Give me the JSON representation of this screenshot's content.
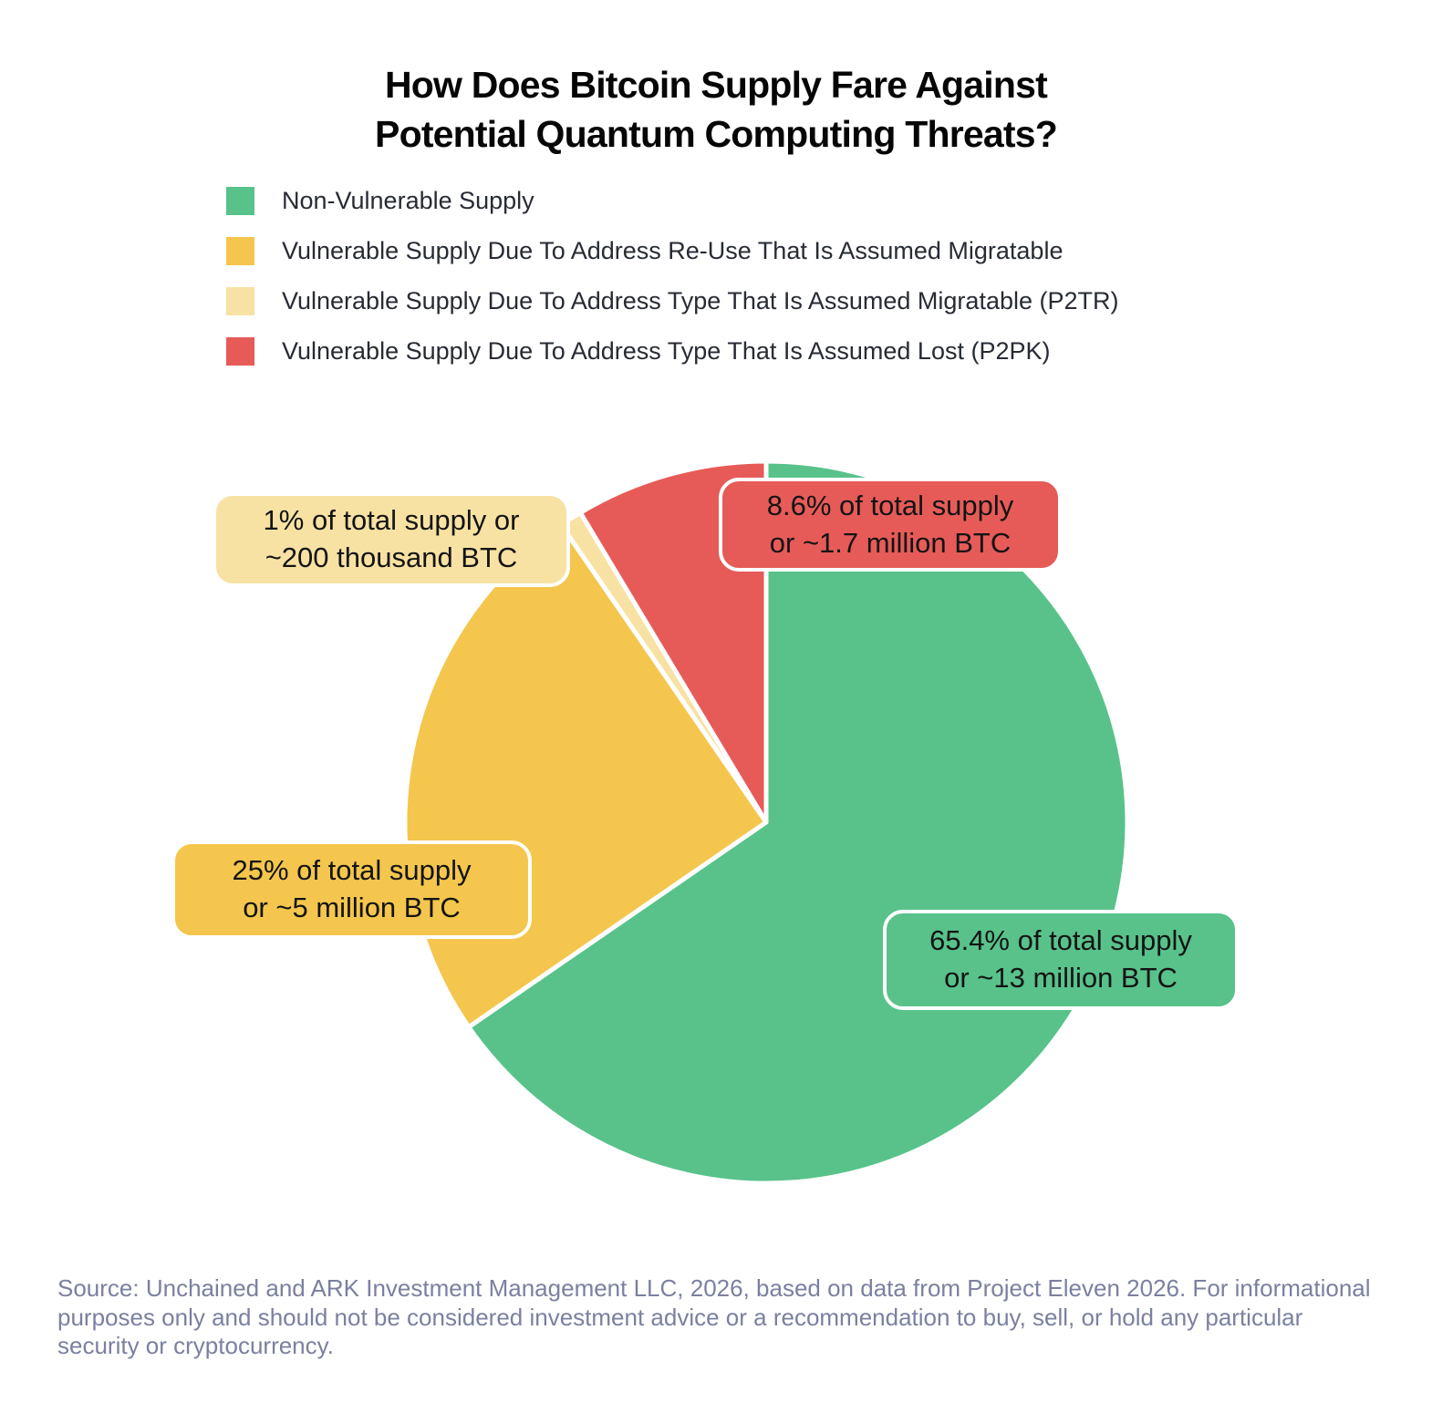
{
  "title": {
    "line1": "How Does Bitcoin Supply Fare Against",
    "line2": "Potential Quantum Computing Threats?"
  },
  "chart_data": {
    "type": "pie",
    "title": "How Does Bitcoin Supply Fare Against Potential Quantum Computing Threats?",
    "start_angle": "12-o-clock",
    "direction": "clockwise",
    "legend_position": "top-left",
    "units": "% of total BTC supply",
    "slices": [
      {
        "id": "non-vulnerable",
        "label": "Non-Vulnerable Supply",
        "percent": 65.4,
        "amount": "~13 million BTC",
        "color": "#58C28A"
      },
      {
        "id": "reuse-migratable",
        "label": "Vulnerable Supply Due To Address Re-Use That Is Assumed Migratable",
        "percent": 25,
        "amount": "~5 million BTC",
        "color": "#F4C64D"
      },
      {
        "id": "p2tr-migratable",
        "label": "Vulnerable Supply Due To Address Type That Is Assumed Migratable (P2TR)",
        "percent": 1,
        "amount": "~200 thousand BTC",
        "color": "#F8E2A3"
      },
      {
        "id": "p2pk-lost",
        "label": "Vulnerable Supply Due To Address Type That Is Assumed Lost (P2PK)",
        "percent": 8.6,
        "amount": "~1.7 million BTC",
        "color": "#E65B58"
      }
    ]
  },
  "callouts": {
    "p2pk": {
      "line1": "8.6% of total supply",
      "line2": "or ~1.7 million BTC"
    },
    "p2tr": {
      "line1": "1% of total supply or",
      "line2": "~200 thousand BTC"
    },
    "reuse": {
      "line1": "25% of total supply",
      "line2": "or ~5 million BTC"
    },
    "nonvuln": {
      "line1": "65.4% of total supply",
      "line2": "or ~13 million BTC"
    }
  },
  "source_text": "Source: Unchained and ARK Investment Management LLC, 2026, based on data from Project Eleven 2026. For informational purposes only and should not be considered investment advice or a recommendation to buy, sell, or hold any particular security or cryptocurrency."
}
